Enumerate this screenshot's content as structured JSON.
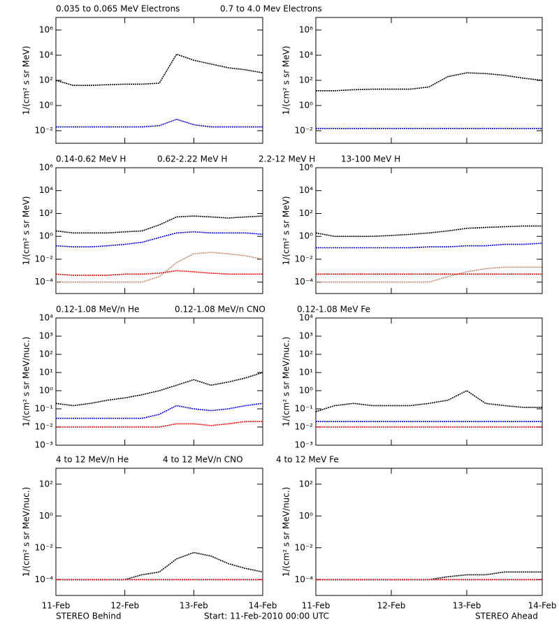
{
  "chart_data": [
    {
      "type": "line",
      "log_y": true,
      "ylabel": "1/(cm² s sr MeV)",
      "xlim": [
        0,
        3
      ],
      "xticks": [
        0,
        1,
        2,
        3
      ],
      "ylim": [
        0.001,
        10000000
      ],
      "yticks": [
        {
          "value": 0.01,
          "label": "10⁻²"
        },
        {
          "value": 1,
          "label": "10⁰"
        },
        {
          "value": 100,
          "label": "10²"
        },
        {
          "value": 10000,
          "label": "10⁴"
        },
        {
          "value": 1000000,
          "label": "10⁶"
        }
      ],
      "x": [
        0,
        0.25,
        0.5,
        0.75,
        1,
        1.25,
        1.5,
        1.75,
        2,
        2.25,
        2.5,
        2.75,
        3
      ],
      "series": [
        {
          "name": "0.035 to 0.065 MeV Electrons",
          "color": "#000000",
          "values": [
            100,
            40,
            40,
            45,
            50,
            50,
            60,
            12000,
            4000,
            2000,
            1000,
            700,
            400
          ]
        },
        {
          "name": "0.7 to 4.0 Mev Electrons",
          "color": "#0000ff",
          "values": [
            0.02,
            0.02,
            0.02,
            0.02,
            0.02,
            0.02,
            0.025,
            0.08,
            0.03,
            0.02,
            0.02,
            0.02,
            0.02
          ]
        }
      ]
    },
    {
      "type": "line",
      "log_y": true,
      "ylabel": "1/(cm² s sr MeV)",
      "xlim": [
        0,
        3
      ],
      "xticks": [
        0,
        1,
        2,
        3
      ],
      "ylim": [
        0.001,
        10000000
      ],
      "yticks": [
        {
          "value": 0.01,
          "label": "10⁻²"
        },
        {
          "value": 1,
          "label": "10⁰"
        },
        {
          "value": 100,
          "label": "10²"
        },
        {
          "value": 10000,
          "label": "10⁴"
        },
        {
          "value": 1000000,
          "label": "10⁶"
        }
      ],
      "x": [
        0,
        0.25,
        0.5,
        0.75,
        1,
        1.25,
        1.5,
        1.75,
        2,
        2.25,
        2.5,
        2.75,
        3
      ],
      "series": [
        {
          "color": "#000000",
          "values": [
            15,
            15,
            18,
            20,
            20,
            20,
            30,
            200,
            400,
            350,
            250,
            150,
            100
          ]
        },
        {
          "color": "#0000ff",
          "values": [
            0.015,
            0.015,
            0.015,
            0.015,
            0.015,
            0.015,
            0.015,
            0.015,
            0.015,
            0.015,
            0.015,
            0.015,
            0.015
          ]
        }
      ]
    },
    {
      "type": "line",
      "log_y": true,
      "ylabel": "1/(cm² s sr MeV)",
      "xlim": [
        0,
        3
      ],
      "xticks": [
        0,
        1,
        2,
        3
      ],
      "ylim": [
        1e-05,
        1000000
      ],
      "yticks": [
        {
          "value": 0.0001,
          "label": "10⁻⁴"
        },
        {
          "value": 0.01,
          "label": "10⁻²"
        },
        {
          "value": 1,
          "label": "10⁰"
        },
        {
          "value": 100,
          "label": "10²"
        },
        {
          "value": 10000,
          "label": "10⁴"
        },
        {
          "value": 1000000,
          "label": "10⁶"
        }
      ],
      "x": [
        0,
        0.25,
        0.5,
        0.75,
        1,
        1.25,
        1.5,
        1.75,
        2,
        2.25,
        2.5,
        2.75,
        3
      ],
      "series": [
        {
          "name": "0.14-0.62 MeV H",
          "color": "#000000",
          "values": [
            3,
            2,
            2,
            2,
            2.5,
            3,
            10,
            50,
            60,
            50,
            40,
            50,
            60
          ]
        },
        {
          "name": "0.62-2.22 MeV H",
          "color": "#0000ff",
          "values": [
            0.15,
            0.12,
            0.12,
            0.15,
            0.2,
            0.3,
            0.8,
            2,
            2.5,
            2,
            2,
            2,
            1.5
          ]
        },
        {
          "name": "2.2-12 MeV H",
          "color": "#c48a6c",
          "values": [
            0.0001,
            0.0001,
            0.0001,
            0.0001,
            0.0001,
            0.0001,
            0.0003,
            0.005,
            0.03,
            0.04,
            0.03,
            0.02,
            0.01
          ]
        },
        {
          "name": "13-100 MeV H",
          "color": "#ff0000",
          "values": [
            0.0005,
            0.0004,
            0.0004,
            0.0004,
            0.0005,
            0.0005,
            0.0006,
            0.001,
            0.0008,
            0.0006,
            0.0005,
            0.0005,
            0.0005
          ]
        }
      ]
    },
    {
      "type": "line",
      "log_y": true,
      "ylabel": "1/(cm² s sr MeV)",
      "xlim": [
        0,
        3
      ],
      "xticks": [
        0,
        1,
        2,
        3
      ],
      "ylim": [
        1e-05,
        1000000
      ],
      "yticks": [
        {
          "value": 0.0001,
          "label": "10⁻⁴"
        },
        {
          "value": 0.01,
          "label": "10⁻²"
        },
        {
          "value": 1,
          "label": "10⁰"
        },
        {
          "value": 100,
          "label": "10²"
        },
        {
          "value": 10000,
          "label": "10⁴"
        },
        {
          "value": 1000000,
          "label": "10⁶"
        }
      ],
      "x": [
        0,
        0.25,
        0.5,
        0.75,
        1,
        1.25,
        1.5,
        1.75,
        2,
        2.25,
        2.5,
        2.75,
        3
      ],
      "series": [
        {
          "color": "#000000",
          "values": [
            2,
            1,
            1,
            1,
            1.2,
            1.5,
            2,
            3,
            5,
            6,
            7,
            8,
            8
          ]
        },
        {
          "color": "#0000ff",
          "values": [
            0.1,
            0.1,
            0.1,
            0.1,
            0.1,
            0.1,
            0.12,
            0.12,
            0.15,
            0.15,
            0.2,
            0.2,
            0.25
          ]
        },
        {
          "color": "#c48a6c",
          "values": [
            0.0001,
            0.0001,
            0.0001,
            0.0001,
            0.0001,
            0.0001,
            0.0001,
            0.0003,
            0.0008,
            0.0015,
            0.002,
            0.002,
            0.002
          ]
        },
        {
          "color": "#ff0000",
          "values": [
            0.0005,
            0.0005,
            0.0005,
            0.0005,
            0.0005,
            0.0005,
            0.0005,
            0.0005,
            0.0005,
            0.0005,
            0.0005,
            0.0005,
            0.0005
          ]
        }
      ]
    },
    {
      "type": "line",
      "log_y": true,
      "ylabel": "1/(cm² s sr MeV/nuc.)",
      "xlim": [
        0,
        3
      ],
      "xticks": [
        0,
        1,
        2,
        3
      ],
      "ylim": [
        0.001,
        10000
      ],
      "yticks": [
        {
          "value": 0.001,
          "label": "10⁻³"
        },
        {
          "value": 0.01,
          "label": "10⁻²"
        },
        {
          "value": 0.1,
          "label": "10⁻¹"
        },
        {
          "value": 1,
          "label": "10⁰"
        },
        {
          "value": 10,
          "label": "10¹"
        },
        {
          "value": 100,
          "label": "10²"
        },
        {
          "value": 1000,
          "label": "10³"
        },
        {
          "value": 10000,
          "label": "10⁴"
        }
      ],
      "x": [
        0,
        0.25,
        0.5,
        0.75,
        1,
        1.25,
        1.5,
        1.75,
        2,
        2.25,
        2.5,
        2.75,
        3
      ],
      "series": [
        {
          "name": "0.12-1.08 MeV/n He",
          "color": "#000000",
          "values": [
            0.2,
            0.15,
            0.2,
            0.3,
            0.4,
            0.6,
            1,
            2,
            4,
            2,
            3,
            5,
            10
          ]
        },
        {
          "name": "0.12-1.08 MeV/n CNO",
          "color": "#0000ff",
          "values": [
            0.03,
            0.03,
            0.03,
            0.03,
            0.03,
            0.03,
            0.05,
            0.15,
            0.1,
            0.08,
            0.1,
            0.15,
            0.2
          ]
        },
        {
          "name": "0.12-1.08 MeV Fe",
          "color": "#ff0000",
          "values": [
            0.01,
            0.01,
            0.01,
            0.01,
            0.01,
            0.01,
            0.01,
            0.015,
            0.015,
            0.012,
            0.015,
            0.02,
            0.02
          ]
        }
      ]
    },
    {
      "type": "line",
      "log_y": true,
      "ylabel": "1/(cm² s sr MeV/nuc.)",
      "xlim": [
        0,
        3
      ],
      "xticks": [
        0,
        1,
        2,
        3
      ],
      "ylim": [
        0.001,
        10000
      ],
      "yticks": [
        {
          "value": 0.001,
          "label": "10⁻³"
        },
        {
          "value": 0.01,
          "label": "10⁻²"
        },
        {
          "value": 0.1,
          "label": "10⁻¹"
        },
        {
          "value": 1,
          "label": "10⁰"
        },
        {
          "value": 10,
          "label": "10¹"
        },
        {
          "value": 100,
          "label": "10²"
        },
        {
          "value": 1000,
          "label": "10³"
        },
        {
          "value": 10000,
          "label": "10⁴"
        }
      ],
      "x": [
        0,
        0.25,
        0.5,
        0.75,
        1,
        1.25,
        1.5,
        1.75,
        2,
        2.25,
        2.5,
        2.75,
        3
      ],
      "series": [
        {
          "color": "#000000",
          "values": [
            0.07,
            0.15,
            0.2,
            0.15,
            0.15,
            0.15,
            0.2,
            0.3,
            1,
            0.2,
            0.15,
            0.12,
            0.12
          ]
        },
        {
          "color": "#0000ff",
          "values": [
            0.02,
            0.02,
            0.02,
            0.02,
            0.02,
            0.02,
            0.02,
            0.02,
            0.02,
            0.02,
            0.02,
            0.02,
            0.02
          ]
        },
        {
          "color": "#ff0000",
          "values": [
            0.01,
            0.01,
            0.01,
            0.01,
            0.01,
            0.01,
            0.01,
            0.01,
            0.01,
            0.01,
            0.01,
            0.01,
            0.01
          ]
        }
      ]
    },
    {
      "type": "line",
      "log_y": true,
      "ylabel": "1/(cm² s sr MeV/nuc.)",
      "xlim": [
        0,
        3
      ],
      "xticks": [
        {
          "value": 0,
          "label": "11-Feb"
        },
        {
          "value": 1,
          "label": "12-Feb"
        },
        {
          "value": 2,
          "label": "13-Feb"
        },
        {
          "value": 3,
          "label": "14-Feb"
        }
      ],
      "ylim": [
        1e-05,
        1000
      ],
      "yticks": [
        {
          "value": 0.0001,
          "label": "10⁻⁴"
        },
        {
          "value": 0.01,
          "label": "10⁻²"
        },
        {
          "value": 1,
          "label": "10⁰"
        },
        {
          "value": 100,
          "label": "10²"
        }
      ],
      "x": [
        0,
        0.25,
        0.5,
        0.75,
        1,
        1.25,
        1.5,
        1.75,
        2,
        2.25,
        2.5,
        2.75,
        3
      ],
      "series": [
        {
          "name": "4 to 12 MeV/n He",
          "color": "#000000",
          "values": [
            0.0001,
            0.0001,
            0.0001,
            0.0001,
            0.0001,
            0.0002,
            0.0003,
            0.002,
            0.005,
            0.003,
            0.001,
            0.0005,
            0.0003
          ]
        },
        {
          "name": "4 to 12 MeV/n CNO",
          "color": "#0000ff",
          "values": [
            0.0001,
            0.0001,
            0.0001,
            0.0001,
            0.0001,
            0.0001,
            0.0001,
            0.0001,
            0.0001,
            0.0001,
            0.0001,
            0.0001,
            0.0001
          ]
        },
        {
          "name": "4 to 12 MeV Fe",
          "color": "#ff0000",
          "values": [
            0.0001,
            0.0001,
            0.0001,
            0.0001,
            0.0001,
            0.0001,
            0.0001,
            0.0001,
            0.0001,
            0.0001,
            0.0001,
            0.0001,
            0.0001
          ]
        }
      ]
    },
    {
      "type": "line",
      "log_y": true,
      "ylabel": "1/(cm² s sr MeV/nuc.)",
      "xlim": [
        0,
        3
      ],
      "xticks": [
        {
          "value": 0,
          "label": "11-Feb"
        },
        {
          "value": 1,
          "label": "12-Feb"
        },
        {
          "value": 2,
          "label": "13-Feb"
        },
        {
          "value": 3,
          "label": "14-Feb"
        }
      ],
      "ylim": [
        1e-05,
        1000
      ],
      "yticks": [
        {
          "value": 0.0001,
          "label": "10⁻⁴"
        },
        {
          "value": 0.01,
          "label": "10⁻²"
        },
        {
          "value": 1,
          "label": "10⁰"
        },
        {
          "value": 100,
          "label": "10²"
        }
      ],
      "x": [
        0,
        0.25,
        0.5,
        0.75,
        1,
        1.25,
        1.5,
        1.75,
        2,
        2.25,
        2.5,
        2.75,
        3
      ],
      "series": [
        {
          "color": "#000000",
          "values": [
            0.0001,
            0.0001,
            0.0001,
            0.0001,
            0.0001,
            0.0001,
            0.0001,
            0.00015,
            0.0002,
            0.0002,
            0.0003,
            0.0003,
            0.0003
          ]
        },
        {
          "color": "#0000ff",
          "values": [
            0.0001,
            0.0001,
            0.0001,
            0.0001,
            0.0001,
            0.0001,
            0.0001,
            0.0001,
            0.0001,
            0.0001,
            0.0001,
            0.0001,
            0.0001
          ]
        },
        {
          "color": "#ff0000",
          "values": [
            0.0001,
            0.0001,
            0.0001,
            0.0001,
            0.0001,
            0.0001,
            0.0001,
            0.0001,
            0.0001,
            0.0001,
            0.0001,
            0.0001,
            0.0001
          ]
        }
      ]
    }
  ],
  "footer": {
    "left": "STEREO Behind",
    "center": "Start: 11-Feb-2010 00:00 UTC",
    "right": "STEREO Ahead"
  }
}
